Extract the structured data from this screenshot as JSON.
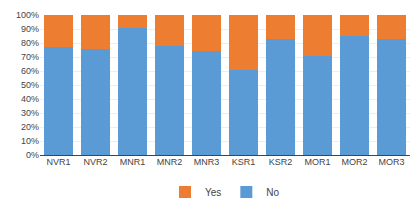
{
  "chart_data": {
    "type": "bar",
    "stacked": true,
    "categories": [
      "NVR1",
      "NVR2",
      "MNR1",
      "MNR2",
      "MNR3",
      "KSR1",
      "KSR2",
      "MOR1",
      "MOR2",
      "MOR3"
    ],
    "series": [
      {
        "name": "No",
        "color": "#5B9BD5",
        "values": [
          0.77,
          0.76,
          0.91,
          0.78,
          0.74,
          0.61,
          0.83,
          0.71,
          0.85,
          0.83
        ]
      },
      {
        "name": "Yes",
        "color": "#ED7D31",
        "values": [
          0.23,
          0.24,
          0.09,
          0.22,
          0.26,
          0.39,
          0.17,
          0.29,
          0.15,
          0.17
        ]
      }
    ],
    "ylim": [
      0,
      1.0
    ],
    "yticks": [
      {
        "value": 0.0,
        "label": "0%"
      },
      {
        "value": 0.1,
        "label": "10%"
      },
      {
        "value": 0.2,
        "label": "20%"
      },
      {
        "value": 0.3,
        "label": "30%"
      },
      {
        "value": 0.4,
        "label": "40%"
      },
      {
        "value": 0.5,
        "label": "50%"
      },
      {
        "value": 0.6,
        "label": "60%"
      },
      {
        "value": 0.7,
        "label": "70%"
      },
      {
        "value": 0.8,
        "label": "80%"
      },
      {
        "value": 0.9,
        "label": "90%"
      },
      {
        "value": 1.0,
        "label": "100%"
      }
    ],
    "grid": true,
    "legend": "bottom"
  }
}
